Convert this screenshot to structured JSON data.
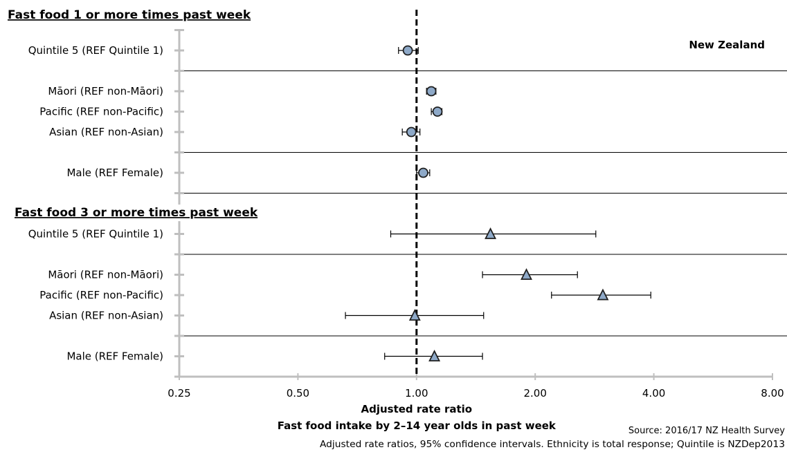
{
  "chart_data": {
    "type": "forest",
    "region_label": "New Zealand",
    "x_axis": {
      "label": "Adjusted rate ratio",
      "scale": "log2",
      "range": [
        0.25,
        8.0
      ],
      "ticks": [
        0.25,
        0.5,
        1.0,
        2.0,
        4.0,
        8.0
      ],
      "tick_labels": [
        "0.25",
        "0.50",
        "1.00",
        "2.00",
        "4.00",
        "8.00"
      ],
      "reference_line": 1.0
    },
    "footer": {
      "title": "Fast food intake by 2–14 year olds in past week",
      "source": "Source: 2016/17 NZ Health Survey",
      "note": "Adjusted rate ratios, 95% confidence intervals. Ethnicity is total response; Quintile is NZDep2013"
    },
    "panels": [
      {
        "title": "Fast food 1 or more times past week",
        "marker": "circle",
        "groups": [
          {
            "rows": [
              {
                "label": "Quintile 5 (REF Quintile 1)",
                "value": 0.95,
                "ci": [
                  0.9,
                  1.01
                ]
              }
            ]
          },
          {
            "rows": [
              {
                "label": "Māori (REF non-Māori)",
                "value": 1.09,
                "ci": [
                  1.06,
                  1.12
                ]
              },
              {
                "label": "Pacific (REF non-Pacific)",
                "value": 1.13,
                "ci": [
                  1.09,
                  1.16
                ]
              },
              {
                "label": "Asian (REF non-Asian)",
                "value": 0.97,
                "ci": [
                  0.92,
                  1.02
                ]
              }
            ]
          },
          {
            "rows": [
              {
                "label": "Male (REF Female)",
                "value": 1.04,
                "ci": [
                  1.0,
                  1.08
                ]
              }
            ]
          }
        ]
      },
      {
        "title": "Fast food 3 or more times past week",
        "marker": "triangle",
        "groups": [
          {
            "rows": [
              {
                "label": "Quintile 5 (REF Quintile 1)",
                "value": 1.54,
                "ci": [
                  0.86,
                  2.85
                ]
              }
            ]
          },
          {
            "rows": [
              {
                "label": "Māori (REF non-Māori)",
                "value": 1.9,
                "ci": [
                  1.47,
                  2.56
                ]
              },
              {
                "label": "Pacific (REF non-Pacific)",
                "value": 2.97,
                "ci": [
                  2.2,
                  3.93
                ]
              },
              {
                "label": "Asian (REF non-Asian)",
                "value": 0.99,
                "ci": [
                  0.66,
                  1.48
                ]
              }
            ]
          },
          {
            "rows": [
              {
                "label": "Male (REF Female)",
                "value": 1.11,
                "ci": [
                  0.83,
                  1.47
                ]
              }
            ]
          }
        ]
      }
    ],
    "colors": {
      "marker_fill": "#8ea9c8",
      "marker_stroke": "#1f1f1f",
      "axis": "#bfbfbf",
      "line": "#000000"
    }
  }
}
